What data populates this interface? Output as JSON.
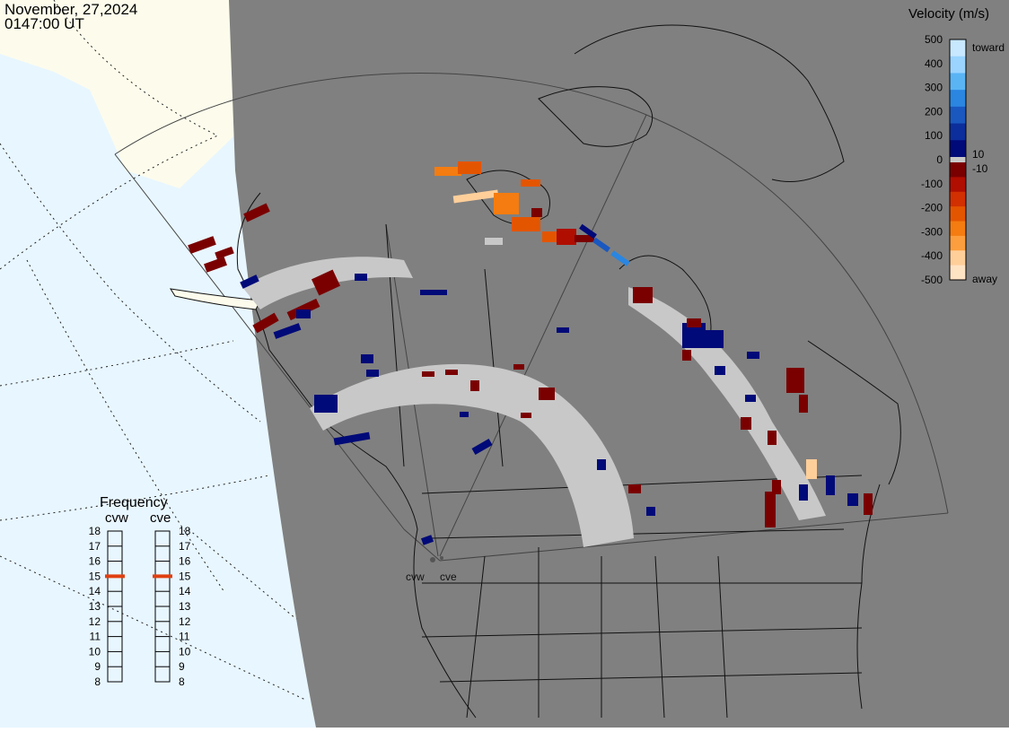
{
  "header": {
    "date": "November, 27,2024",
    "time": "0147:00 UT"
  },
  "velocity_scale": {
    "title": "Velocity (m/s)",
    "ticks": [
      "500",
      "400",
      "300",
      "200",
      "100",
      "0",
      "-100",
      "-200",
      "-300",
      "-400",
      "-500"
    ],
    "small_ticks": [
      "10",
      "-10"
    ],
    "toward_label": "toward",
    "away_label": "away",
    "colors": {
      "toward": [
        "#c8e8ff",
        "#9ad4ff",
        "#5ab4f4",
        "#2a86e0",
        "#1a58c0",
        "#0c2e9c",
        "#000a78"
      ],
      "away": [
        "#7a0000",
        "#b00e00",
        "#d23000",
        "#e45500",
        "#f47c10",
        "#fc9e3e",
        "#ffcf9a",
        "#ffe4c4"
      ],
      "near_zero": "#c8c8c8"
    }
  },
  "frequency_panel": {
    "title": "Frequency",
    "radars": [
      {
        "name": "cvw",
        "frequency_mhz": 15
      },
      {
        "name": "cve",
        "frequency_mhz": 15
      }
    ],
    "scale_left": [
      "18",
      "17",
      "16",
      "15",
      "14",
      "13",
      "12",
      "11",
      "10",
      "9",
      "8"
    ],
    "scale_right": [
      "18",
      "17",
      "16",
      "15",
      "14",
      "13",
      "12",
      "11",
      "10",
      "9",
      "8"
    ],
    "marker_color": "#e04010"
  },
  "radar_sites": {
    "west_label": "cvw",
    "east_label": "cve"
  },
  "map": {
    "night_color": "#808080",
    "day_land_color": "#fdfcec",
    "day_ocean_color": "#e8f6ff",
    "ground_scatter_color": "#c8c8c8"
  }
}
